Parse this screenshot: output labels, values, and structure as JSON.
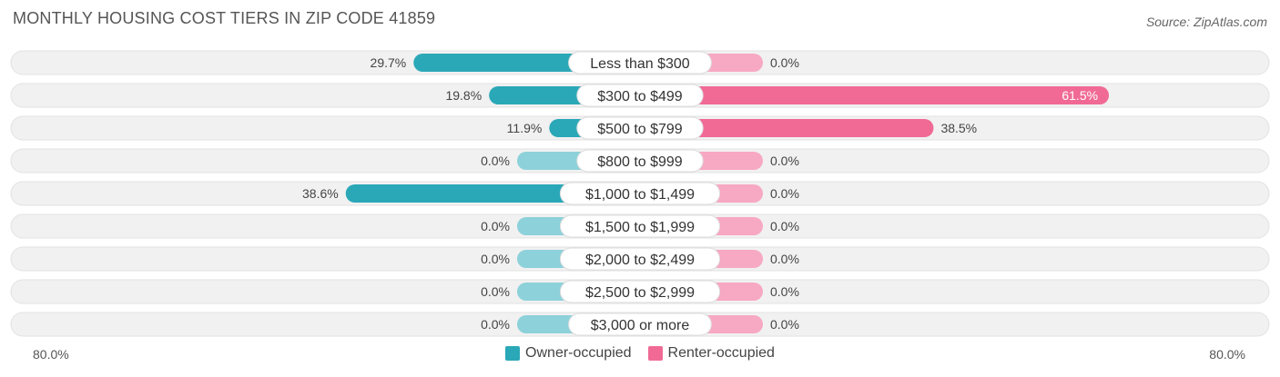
{
  "title": "MONTHLY HOUSING COST TIERS IN ZIP CODE 41859",
  "source": "Source: ZipAtlas.com",
  "colors": {
    "owner": "#2aa8b8",
    "owner_light": "#8dd1da",
    "renter": "#f06a95",
    "renter_light": "#f7a8c3",
    "track": "#f1f1f1"
  },
  "axis": {
    "left_label": "80.0%",
    "right_label": "80.0%"
  },
  "legend": {
    "owner": "Owner-occupied",
    "renter": "Renter-occupied"
  },
  "chart_data": {
    "type": "bar",
    "orientation": "horizontal-diverging",
    "xlim": [
      -80,
      80
    ],
    "categories": [
      "Less than $300",
      "$300 to $499",
      "$500 to $799",
      "$800 to $999",
      "$1,000 to $1,499",
      "$1,500 to $1,999",
      "$2,000 to $2,499",
      "$2,500 to $2,999",
      "$3,000 or more"
    ],
    "series": [
      {
        "name": "Owner-occupied",
        "values": [
          29.7,
          19.8,
          11.9,
          0.0,
          38.6,
          0.0,
          0.0,
          0.0,
          0.0
        ]
      },
      {
        "name": "Renter-occupied",
        "values": [
          0.0,
          61.5,
          38.5,
          0.0,
          0.0,
          0.0,
          0.0,
          0.0,
          0.0
        ]
      }
    ],
    "owner_labels": [
      "29.7%",
      "19.8%",
      "11.9%",
      "0.0%",
      "38.6%",
      "0.0%",
      "0.0%",
      "0.0%",
      "0.0%"
    ],
    "renter_labels": [
      "0.0%",
      "61.5%",
      "38.5%",
      "0.0%",
      "0.0%",
      "0.0%",
      "0.0%",
      "0.0%",
      "0.0%"
    ]
  }
}
